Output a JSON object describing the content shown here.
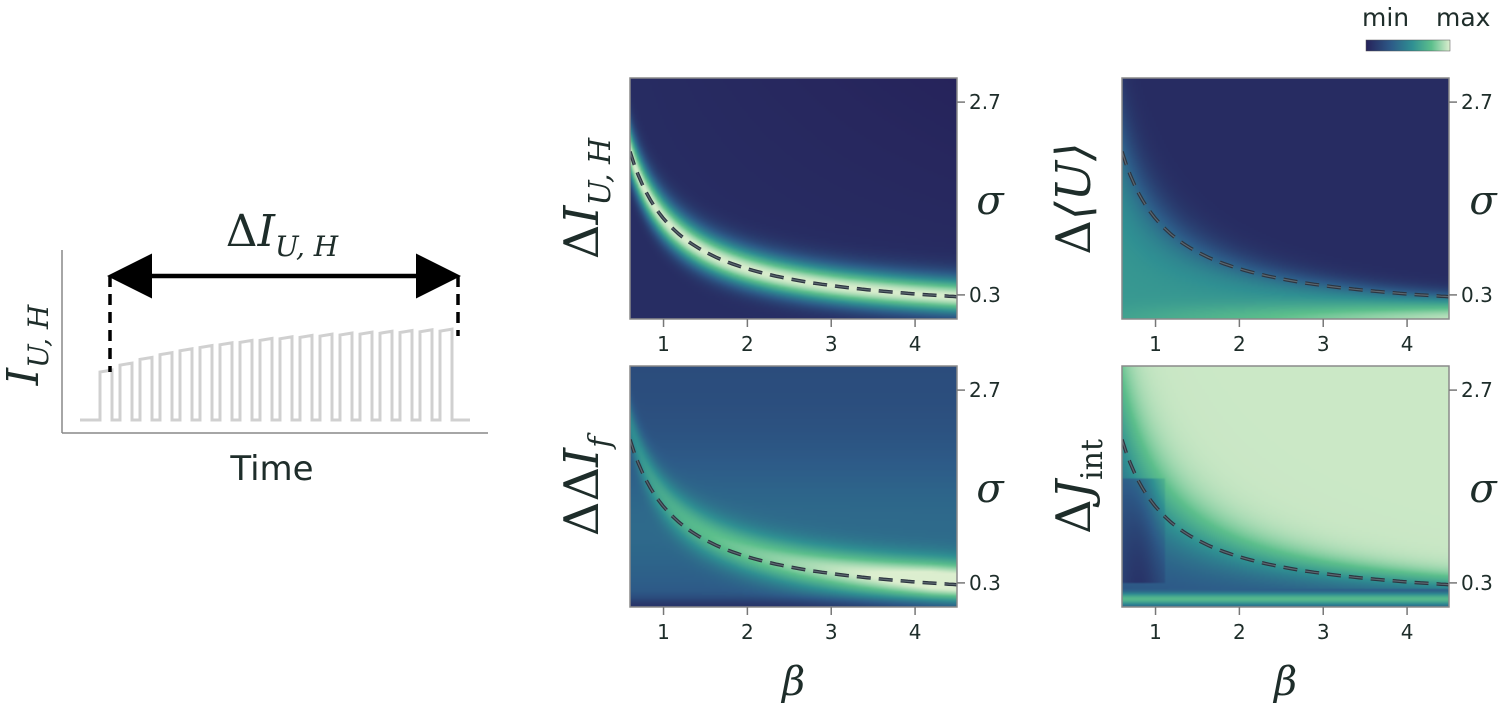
{
  "colorbar": {
    "min_label": "min",
    "max_label": "max",
    "colors": [
      "#26225a",
      "#2d5b88",
      "#2f8f92",
      "#5cbf8c",
      "#dceecf"
    ]
  },
  "schematic": {
    "ylabel_base": "I",
    "ylabel_sub": "U, H",
    "span_delta": "Δ",
    "span_base": "I",
    "span_sub": "U, H",
    "xlabel": "Time",
    "pulses": 18
  },
  "chart_data": [
    {
      "type": "heatmap",
      "id": "dIUH",
      "ylabel_delta": "Δ",
      "ylabel_base": "I",
      "ylabel_sub": "U, H",
      "ylabel_sub_style": "italic",
      "xlabel": "",
      "x_ticks": [
        1,
        2,
        3,
        4
      ],
      "xlim": [
        0.6,
        4.5
      ],
      "y_axis_label": "σ",
      "y_ticks": [
        0.3,
        2.7
      ],
      "ylim": [
        0,
        3.0
      ],
      "y_axis_side": "right",
      "dashed_curve": "σ ≈ 1.2 / β"
    },
    {
      "type": "heatmap",
      "id": "dU",
      "ylabel_delta": "Δ",
      "ylabel_base": "⟨U⟩",
      "ylabel_sub": "",
      "ylabel_sub_style": "italic",
      "xlabel": "",
      "x_ticks": [
        1,
        2,
        3,
        4
      ],
      "xlim": [
        0.6,
        4.5
      ],
      "y_axis_label": "σ",
      "y_ticks": [
        0.3,
        2.7
      ],
      "ylim": [
        0,
        3.0
      ],
      "y_axis_side": "right",
      "dashed_curve": "σ ≈ 1.2 / β"
    },
    {
      "type": "heatmap",
      "id": "ddIf",
      "ylabel_delta": "ΔΔ",
      "ylabel_base": "I",
      "ylabel_sub": "f",
      "ylabel_sub_style": "italic",
      "xlabel": "β",
      "x_ticks": [
        1,
        2,
        3,
        4
      ],
      "xlim": [
        0.6,
        4.5
      ],
      "y_axis_label": "σ",
      "y_ticks": [
        0.3,
        2.7
      ],
      "ylim": [
        0,
        3.0
      ],
      "y_axis_side": "right",
      "dashed_curve": "σ ≈ 1.2 / β"
    },
    {
      "type": "heatmap",
      "id": "dJint",
      "ylabel_delta": "Δ",
      "ylabel_base": "J",
      "ylabel_sub": "int",
      "ylabel_sub_style": "upright",
      "xlabel": "β",
      "x_ticks": [
        1,
        2,
        3,
        4
      ],
      "xlim": [
        0.6,
        4.5
      ],
      "y_axis_label": "σ",
      "y_ticks": [
        0.3,
        2.7
      ],
      "ylim": [
        0,
        3.0
      ],
      "y_axis_side": "right",
      "dashed_curve": "σ ≈ 1.2 / β"
    }
  ]
}
